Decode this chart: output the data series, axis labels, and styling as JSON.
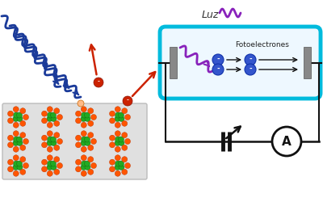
{
  "bg_color": "#ffffff",
  "luz_label": "Luz",
  "fotoelectrones_label": "Fotoelectrones",
  "ammeter_label": "A",
  "light_wave_color": "#1a3a99",
  "electron_color": "#3355cc",
  "red_electron_color": "#cc2200",
  "atom_green_color": "#22aa22",
  "atom_orange_color": "#ff5500",
  "arrow_red_color": "#cc2200",
  "tube_border_color": "#00bbdd",
  "purple_color": "#8822bb",
  "gray_electrode_color": "#888888",
  "metal_bg_color": "#e0e0e0",
  "circuit_color": "#111111"
}
